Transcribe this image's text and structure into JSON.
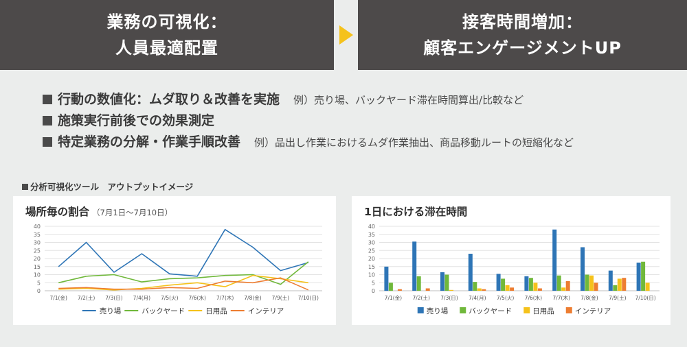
{
  "banner_left": {
    "line1": "業務の可視化：",
    "line2": "人員最適配置"
  },
  "banner_right": {
    "line1": "接客時間増加：",
    "line2": "顧客エンゲージメントUP"
  },
  "colors": {
    "banner": "#4d4a4a",
    "arrow": "#f5c21b",
    "background": "#ebedec"
  },
  "bullets": [
    {
      "text": "行動の数値化：ムダ取り＆改善を実施",
      "example": "例）売り場、バックヤード滞在時間算出/比較など"
    },
    {
      "text": "施策実行前後での効果測定",
      "example": ""
    },
    {
      "text": "特定業務の分解・作業手順改善",
      "example": "例）品出し作業におけるムダ作業抽出、商品移動ルートの短縮化など"
    }
  ],
  "tool_label": "分析可視化ツール　アウトプットイメージ",
  "chart_data": [
    {
      "type": "line",
      "title": "場所毎の割合",
      "subtitle": "（7月1日～7月10日）",
      "categories": [
        "7/1(金)",
        "7/2(土)",
        "7/3(日)",
        "7/4(月)",
        "7/5(火)",
        "7/6(水)",
        "7/7(木)",
        "7/8(金)",
        "7/9(土)",
        "7/10(日)"
      ],
      "ylim": [
        0,
        40
      ],
      "yticks": [
        0,
        5,
        10,
        15,
        20,
        25,
        30,
        35,
        40
      ],
      "grid": true,
      "legend_position": "bottom",
      "series": [
        {
          "name": "売り場",
          "color": "#2e75b6",
          "values": [
            15,
            30,
            11.5,
            23,
            10.5,
            9,
            38,
            27,
            12.5,
            17.5
          ]
        },
        {
          "name": "バックヤード",
          "color": "#70b83b",
          "values": [
            5,
            9,
            10,
            5.5,
            7.5,
            8,
            9.5,
            10,
            4,
            18
          ]
        },
        {
          "name": "日用品",
          "color": "#f5c21b",
          "values": [
            1,
            1.5,
            0.5,
            1.5,
            3.5,
            5,
            2.5,
            9.5,
            7.5,
            5
          ]
        },
        {
          "name": "インテリア",
          "color": "#ed7d31",
          "values": [
            1.5,
            2,
            1,
            1,
            2,
            1.5,
            6,
            5,
            8,
            0.5
          ]
        }
      ]
    },
    {
      "type": "bar",
      "title": "1日における滞在時間",
      "subtitle": "",
      "categories": [
        "7/1(金)",
        "7/2(土)",
        "7/3(日)",
        "7/4(月)",
        "7/5(火)",
        "7/6(水)",
        "7/7(木)",
        "7/8(金)",
        "7/9(土)",
        "7/10(日)"
      ],
      "ylim": [
        0,
        40
      ],
      "yticks": [
        0,
        5,
        10,
        15,
        20,
        25,
        30,
        35,
        40
      ],
      "grid": true,
      "legend_position": "bottom",
      "series": [
        {
          "name": "売り場",
          "color": "#2e75b6",
          "values": [
            15,
            30.5,
            11.5,
            23,
            10.5,
            9,
            38,
            27,
            12.5,
            17.5
          ]
        },
        {
          "name": "バックヤード",
          "color": "#70b83b",
          "values": [
            5,
            9,
            10,
            5.5,
            7.5,
            8,
            9.5,
            10,
            3.5,
            18
          ]
        },
        {
          "name": "日用品",
          "color": "#f5c21b",
          "values": [
            0,
            0,
            0.5,
            1.5,
            3.5,
            5,
            2,
            9.5,
            7.5,
            5
          ]
        },
        {
          "name": "インテリア",
          "color": "#ed7d31",
          "values": [
            1,
            1.5,
            0,
            1,
            2,
            1.5,
            6,
            5,
            8,
            0
          ]
        }
      ]
    }
  ]
}
